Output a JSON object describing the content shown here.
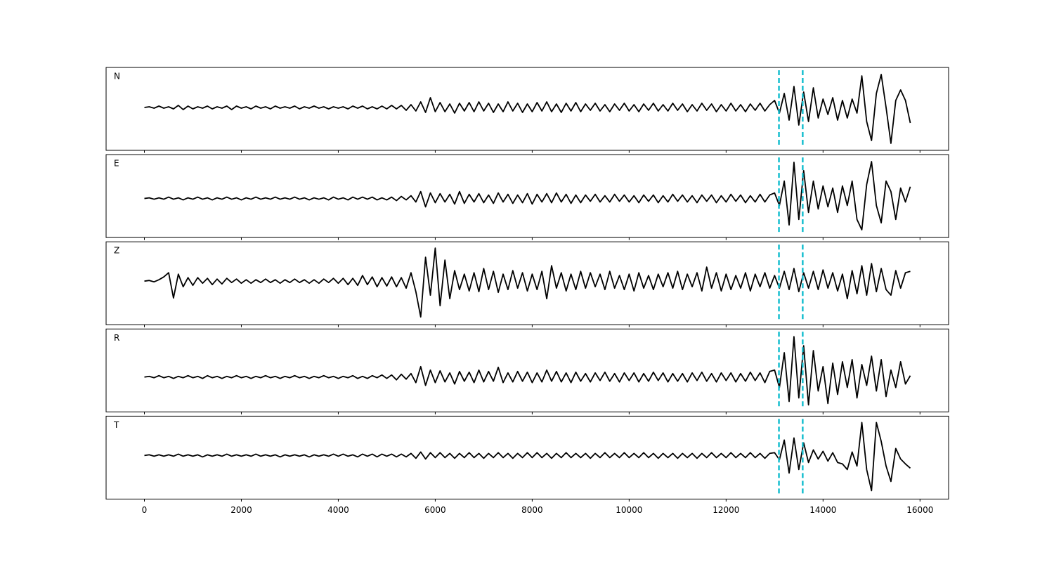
{
  "chart_data": {
    "type": "line",
    "xlim": [
      -790,
      16590
    ],
    "xticks": [
      0,
      2000,
      4000,
      6000,
      8000,
      10000,
      12000,
      14000,
      16000
    ],
    "vlines": [
      13090,
      13580
    ],
    "vline_color": "#17becf",
    "x": [
      0,
      100,
      200,
      300,
      400,
      500,
      600,
      700,
      800,
      900,
      1000,
      1100,
      1200,
      1300,
      1400,
      1500,
      1600,
      1700,
      1800,
      1900,
      2000,
      2100,
      2200,
      2300,
      2400,
      2500,
      2600,
      2700,
      2800,
      2900,
      3000,
      3100,
      3200,
      3300,
      3400,
      3500,
      3600,
      3700,
      3800,
      3900,
      4000,
      4100,
      4200,
      4300,
      4400,
      4500,
      4600,
      4700,
      4800,
      4900,
      5000,
      5100,
      5200,
      5300,
      5400,
      5500,
      5600,
      5700,
      5800,
      5900,
      6000,
      6100,
      6200,
      6300,
      6400,
      6500,
      6600,
      6700,
      6800,
      6900,
      7000,
      7100,
      7200,
      7300,
      7400,
      7500,
      7600,
      7700,
      7800,
      7900,
      8000,
      8100,
      8200,
      8300,
      8400,
      8500,
      8600,
      8700,
      8800,
      8900,
      9000,
      9100,
      9200,
      9300,
      9400,
      9500,
      9600,
      9700,
      9800,
      9900,
      10000,
      10100,
      10200,
      10300,
      10400,
      10500,
      10600,
      10700,
      10800,
      10900,
      11000,
      11100,
      11200,
      11300,
      11400,
      11500,
      11600,
      11700,
      11800,
      11900,
      12000,
      12100,
      12200,
      12300,
      12400,
      12500,
      12600,
      12700,
      12800,
      12900,
      13000,
      13100,
      13200,
      13300,
      13400,
      13500,
      13600,
      13700,
      13800,
      13900,
      14000,
      14100,
      14200,
      14300,
      14400,
      14500,
      14600,
      14700,
      14800,
      14900,
      15000,
      15100,
      15200,
      15300,
      15400,
      15500,
      15600,
      15700,
      15800
    ],
    "series": [
      {
        "name": "N",
        "color": "#000000",
        "ylim": [
          -61,
          57
        ],
        "values": [
          0,
          1,
          -1,
          2,
          -1,
          1,
          -2,
          3,
          -3,
          2,
          -2,
          1,
          -1,
          2,
          -2,
          1,
          -1,
          2,
          -3,
          2,
          -1,
          1,
          -2,
          2,
          -1,
          1,
          -2,
          2,
          -1,
          1,
          -1,
          2,
          -2,
          1,
          -1,
          2,
          -1,
          1,
          -2,
          1,
          -1,
          1,
          -2,
          2,
          -1,
          2,
          -2,
          1,
          -2,
          2,
          -2,
          3,
          -2,
          3,
          -4,
          4,
          -5,
          8,
          -7,
          14,
          -6,
          7,
          -6,
          5,
          -8,
          6,
          -5,
          7,
          -6,
          8,
          -5,
          6,
          -7,
          5,
          -6,
          8,
          -5,
          6,
          -7,
          5,
          -6,
          7,
          -5,
          8,
          -6,
          5,
          -7,
          6,
          -5,
          7,
          -6,
          5,
          -4,
          6,
          -5,
          4,
          -6,
          5,
          -4,
          6,
          -5,
          4,
          -6,
          5,
          -4,
          6,
          -5,
          4,
          -5,
          6,
          -4,
          5,
          -6,
          4,
          -5,
          6,
          -4,
          5,
          -6,
          4,
          -5,
          6,
          -5,
          4,
          -6,
          5,
          -4,
          6,
          -5,
          4,
          10,
          -8,
          20,
          -18,
          30,
          -25,
          22,
          -20,
          28,
          -15,
          12,
          -10,
          14,
          -18,
          10,
          -15,
          12,
          -8,
          45,
          -20,
          -47,
          20,
          47,
          0,
          -51,
          10,
          25,
          10,
          -22
        ]
      },
      {
        "name": "E",
        "color": "#000000",
        "ylim": [
          -56,
          63
        ],
        "values": [
          0,
          1,
          -1,
          1,
          -1,
          2,
          -1,
          1,
          -2,
          1,
          -1,
          2,
          -1,
          1,
          -2,
          1,
          -1,
          2,
          -1,
          1,
          -2,
          1,
          -1,
          2,
          -1,
          1,
          -1,
          2,
          -1,
          1,
          -1,
          2,
          -1,
          1,
          -2,
          1,
          -1,
          1,
          -2,
          2,
          -1,
          1,
          -2,
          2,
          -1,
          2,
          -1,
          2,
          -2,
          1,
          -2,
          2,
          -3,
          3,
          -2,
          4,
          -5,
          10,
          -12,
          8,
          -6,
          7,
          -5,
          6,
          -8,
          10,
          -7,
          6,
          -5,
          7,
          -6,
          5,
          -7,
          8,
          -5,
          6,
          -7,
          5,
          -6,
          7,
          -8,
          6,
          -5,
          7,
          -6,
          8,
          -5,
          6,
          -7,
          5,
          -6,
          5,
          -4,
          6,
          -5,
          4,
          -5,
          6,
          -4,
          5,
          -5,
          4,
          -6,
          5,
          -4,
          5,
          -6,
          4,
          -5,
          6,
          -4,
          5,
          -5,
          4,
          -6,
          5,
          -4,
          5,
          -6,
          4,
          -5,
          6,
          -4,
          5,
          -6,
          4,
          -5,
          6,
          -5,
          5,
          8,
          -10,
          25,
          -38,
          52,
          -30,
          40,
          -20,
          25,
          -15,
          18,
          -12,
          15,
          -20,
          18,
          -10,
          25,
          -30,
          -45,
          20,
          53,
          -10,
          -35,
          25,
          10,
          -30,
          15,
          -5,
          17
        ]
      },
      {
        "name": "Z",
        "color": "#000000",
        "ylim": [
          -62,
          56
        ],
        "values": [
          0,
          1,
          -1,
          2,
          6,
          12,
          -24,
          10,
          -8,
          5,
          -6,
          5,
          -3,
          4,
          -5,
          3,
          -4,
          4,
          -2,
          3,
          -3,
          2,
          -3,
          2,
          -2,
          3,
          -2,
          2,
          -3,
          2,
          -2,
          3,
          -2,
          2,
          -3,
          2,
          -3,
          3,
          -2,
          4,
          -3,
          4,
          -5,
          4,
          -6,
          8,
          -5,
          6,
          -8,
          5,
          -7,
          6,
          -8,
          5,
          -10,
          12,
          -15,
          -51,
          34,
          -20,
          47,
          -35,
          30,
          -25,
          15,
          -12,
          10,
          -14,
          12,
          -15,
          18,
          -12,
          14,
          -16,
          10,
          -12,
          15,
          -10,
          12,
          -14,
          10,
          -12,
          14,
          -25,
          22,
          -10,
          12,
          -14,
          10,
          -12,
          14,
          -10,
          12,
          -8,
          10,
          -12,
          14,
          -10,
          8,
          -12,
          10,
          -14,
          12,
          -10,
          8,
          -12,
          10,
          -8,
          12,
          -10,
          14,
          -12,
          10,
          -8,
          12,
          -14,
          20,
          -10,
          12,
          -14,
          10,
          -12,
          8,
          -10,
          12,
          -14,
          10,
          -8,
          12,
          -10,
          8,
          -10,
          14,
          -12,
          18,
          -15,
          12,
          -10,
          14,
          -12,
          16,
          -10,
          12,
          -14,
          10,
          -25,
          15,
          -18,
          22,
          -20,
          25,
          -15,
          18,
          -12,
          -20,
          15,
          -10,
          12,
          14
        ]
      },
      {
        "name": "R",
        "color": "#000000",
        "ylim": [
          -50,
          69
        ],
        "values": [
          0,
          1,
          -1,
          2,
          -1,
          1,
          -2,
          1,
          -1,
          2,
          -1,
          1,
          -2,
          2,
          -1,
          1,
          -2,
          1,
          -1,
          2,
          -1,
          1,
          -2,
          1,
          -1,
          2,
          -1,
          1,
          -2,
          1,
          -1,
          2,
          -1,
          1,
          -2,
          1,
          -1,
          2,
          -1,
          1,
          -2,
          1,
          -1,
          2,
          -2,
          1,
          -2,
          2,
          -1,
          3,
          -2,
          3,
          -4,
          4,
          -3,
          5,
          -8,
          15,
          -12,
          10,
          -8,
          9,
          -7,
          6,
          -10,
          8,
          -6,
          7,
          -8,
          10,
          -7,
          8,
          -6,
          14,
          -8,
          6,
          -7,
          8,
          -6,
          7,
          -8,
          6,
          -7,
          10,
          -6,
          8,
          -7,
          6,
          -8,
          7,
          -6,
          5,
          -7,
          6,
          -5,
          7,
          -6,
          5,
          -7,
          6,
          -5,
          6,
          -7,
          5,
          -6,
          7,
          -5,
          6,
          -7,
          5,
          -6,
          5,
          -7,
          6,
          -5,
          7,
          -6,
          5,
          -7,
          6,
          -5,
          6,
          -7,
          5,
          -6,
          7,
          -5,
          6,
          -8,
          8,
          10,
          -15,
          35,
          -35,
          58,
          -30,
          45,
          -40,
          38,
          -20,
          15,
          -38,
          20,
          -25,
          22,
          -15,
          25,
          -30,
          18,
          -12,
          30,
          -20,
          25,
          -28,
          10,
          -15,
          22,
          -10,
          2
        ]
      },
      {
        "name": "T",
        "color": "#000000",
        "ylim": [
          -62,
          56
        ],
        "values": [
          0,
          1,
          -1,
          1,
          -1,
          1,
          -1,
          2,
          -1,
          1,
          -1,
          1,
          -2,
          1,
          -1,
          1,
          -1,
          2,
          -1,
          1,
          -1,
          1,
          -1,
          2,
          -1,
          1,
          -1,
          1,
          -2,
          1,
          -1,
          1,
          -1,
          1,
          -2,
          1,
          -1,
          1,
          -1,
          2,
          -1,
          2,
          -1,
          1,
          -2,
          2,
          -1,
          2,
          -2,
          2,
          -1,
          2,
          -2,
          2,
          -2,
          3,
          -4,
          5,
          -5,
          4,
          -3,
          4,
          -3,
          3,
          -4,
          3,
          -3,
          4,
          -3,
          3,
          -4,
          3,
          -3,
          4,
          -3,
          3,
          -4,
          3,
          -3,
          4,
          -3,
          4,
          -3,
          3,
          -4,
          3,
          -3,
          4,
          -3,
          3,
          -3,
          3,
          -4,
          3,
          -3,
          4,
          -3,
          3,
          -3,
          4,
          -3,
          3,
          -3,
          4,
          -3,
          3,
          -4,
          3,
          -3,
          3,
          -4,
          3,
          -3,
          3,
          -4,
          3,
          -3,
          4,
          -3,
          3,
          -3,
          4,
          -3,
          3,
          -3,
          4,
          -3,
          3,
          -4,
          3,
          4,
          -6,
          22,
          -25,
          25,
          -20,
          18,
          -10,
          8,
          -5,
          6,
          -8,
          4,
          -10,
          -12,
          -20,
          5,
          -15,
          47,
          -20,
          -50,
          47,
          20,
          -15,
          -37,
          10,
          -5,
          -12,
          -18
        ]
      }
    ]
  }
}
